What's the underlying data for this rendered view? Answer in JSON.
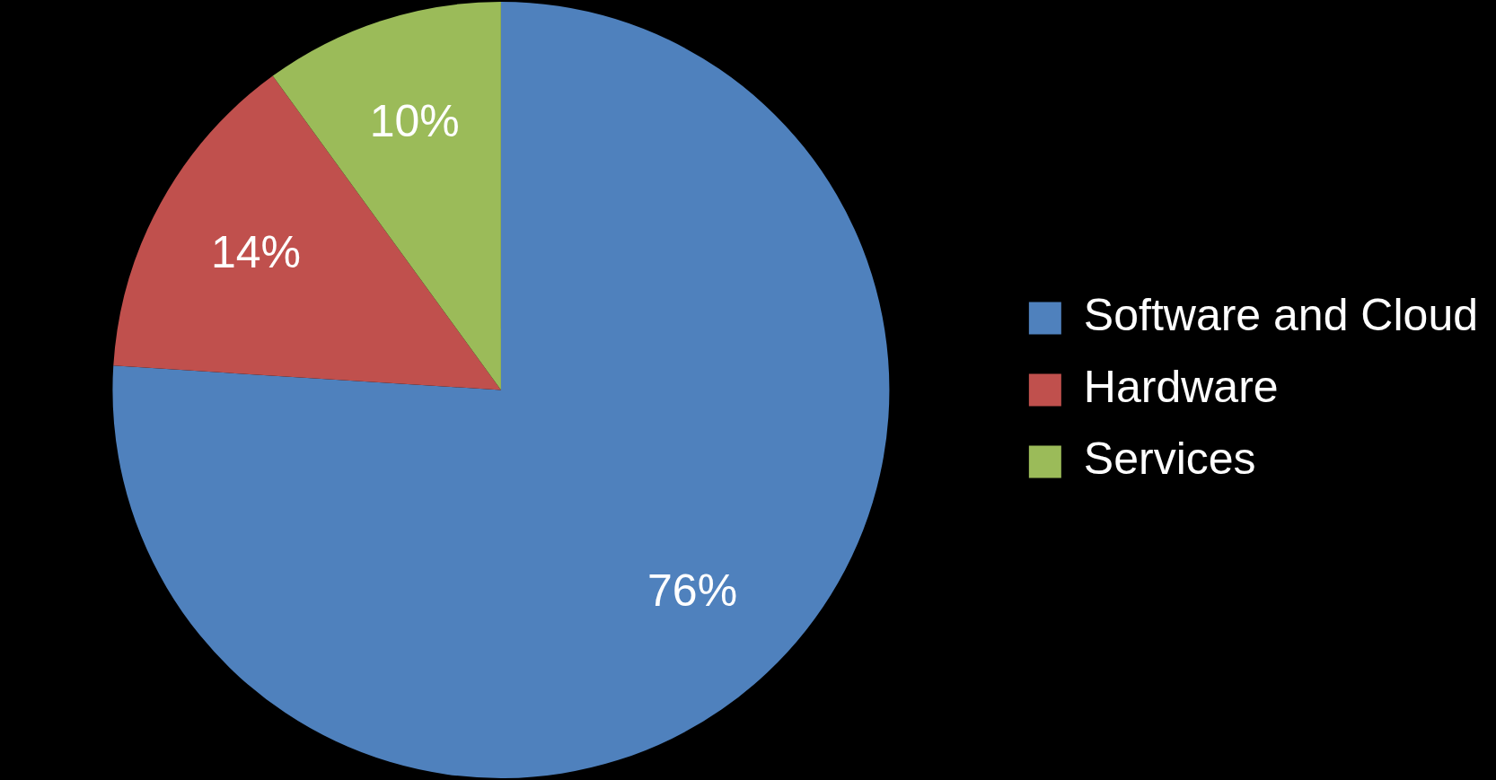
{
  "chart_data": {
    "type": "pie",
    "categories": [
      "Software and Cloud",
      "Hardware",
      "Services"
    ],
    "values": [
      76,
      14,
      10
    ],
    "colors": [
      "#4f81bd",
      "#c0504d",
      "#9bbb59"
    ],
    "value_labels": [
      "76%",
      "14%",
      "10%"
    ],
    "legend": "right"
  }
}
